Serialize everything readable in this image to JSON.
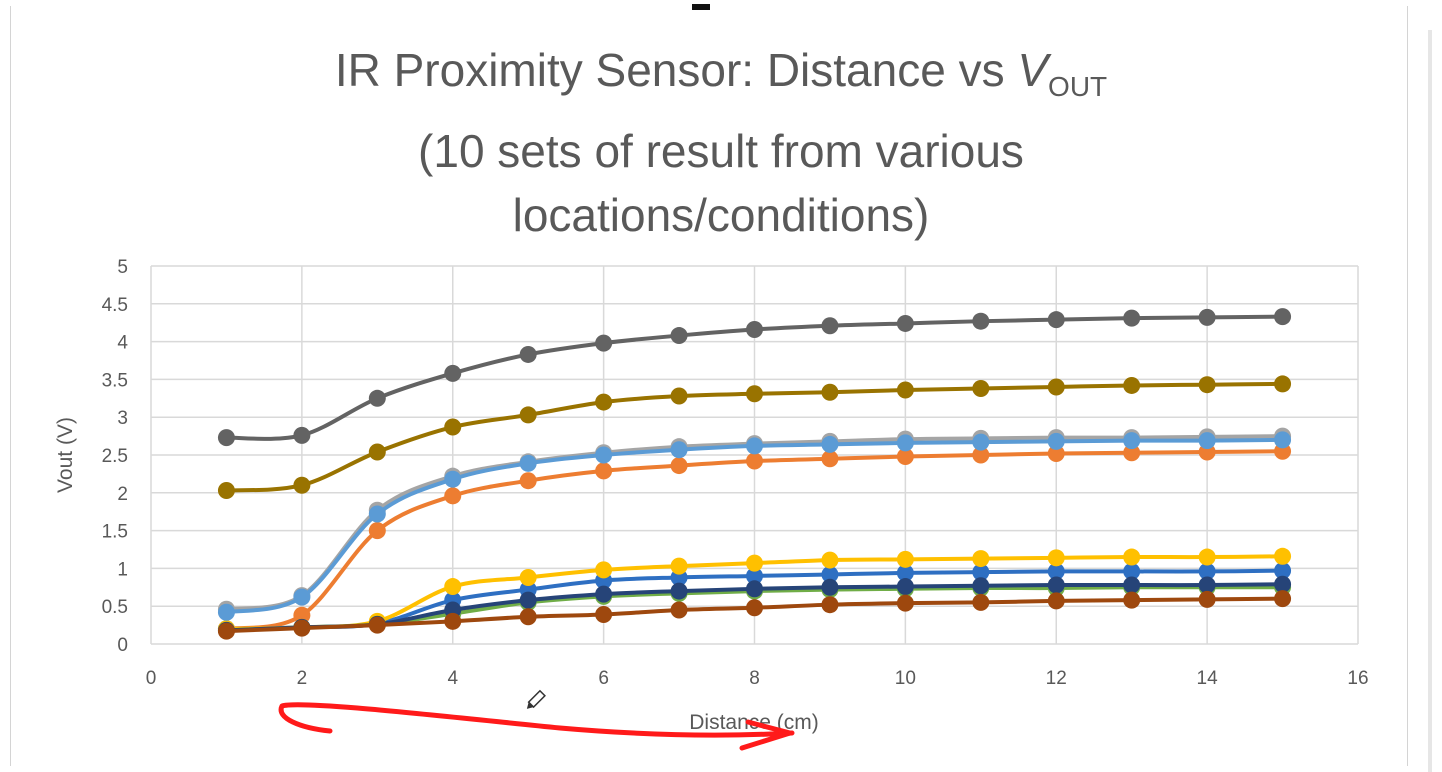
{
  "chart_data": {
    "type": "line",
    "title": {
      "line1_prefix": "IR Proximity Sensor: Distance vs ",
      "line1_var": "V",
      "line1_sub": "OUT",
      "line2": "(10 sets of result from various",
      "line3": "locations/conditions)"
    },
    "xlabel": "Distance (cm)",
    "ylabel": "Vout (V)",
    "xlim": [
      0,
      16
    ],
    "ylim": [
      0,
      5
    ],
    "xticks": [
      "0",
      "2",
      "4",
      "6",
      "8",
      "10",
      "12",
      "14",
      "16"
    ],
    "yticks": [
      "0",
      "0.5",
      "1",
      "1.5",
      "2",
      "2.5",
      "3",
      "3.5",
      "4",
      "4.5",
      "5"
    ],
    "grid": true,
    "legend": "none",
    "smooth": true,
    "markers": true,
    "x": [
      1,
      2,
      3,
      4,
      5,
      6,
      7,
      8,
      9,
      10,
      11,
      12,
      13,
      14,
      15
    ],
    "series": [
      {
        "color": "#2e6fc2",
        "values": [
          0.2,
          0.22,
          0.27,
          0.58,
          0.72,
          0.84,
          0.88,
          0.9,
          0.92,
          0.94,
          0.95,
          0.96,
          0.96,
          0.96,
          0.97
        ]
      },
      {
        "color": "#ed7d31",
        "values": [
          0.2,
          0.38,
          1.5,
          1.96,
          2.16,
          2.29,
          2.36,
          2.42,
          2.45,
          2.48,
          2.5,
          2.52,
          2.53,
          2.54,
          2.55
        ]
      },
      {
        "color": "#a5a5a5",
        "values": [
          0.46,
          0.64,
          1.77,
          2.22,
          2.41,
          2.53,
          2.61,
          2.65,
          2.68,
          2.71,
          2.72,
          2.73,
          2.73,
          2.74,
          2.75
        ]
      },
      {
        "color": "#ffc000",
        "values": [
          0.2,
          0.22,
          0.3,
          0.76,
          0.88,
          0.98,
          1.03,
          1.07,
          1.11,
          1.12,
          1.13,
          1.14,
          1.15,
          1.15,
          1.16
        ]
      },
      {
        "color": "#5b9bd5",
        "values": [
          0.42,
          0.62,
          1.72,
          2.18,
          2.39,
          2.5,
          2.57,
          2.62,
          2.64,
          2.66,
          2.67,
          2.68,
          2.69,
          2.69,
          2.7
        ]
      },
      {
        "color": "#70ad47",
        "values": [
          0.18,
          0.22,
          0.26,
          0.4,
          0.55,
          0.63,
          0.67,
          0.7,
          0.72,
          0.73,
          0.74,
          0.74,
          0.75,
          0.75,
          0.75
        ]
      },
      {
        "color": "#264478",
        "values": [
          0.18,
          0.22,
          0.26,
          0.45,
          0.58,
          0.66,
          0.7,
          0.73,
          0.75,
          0.76,
          0.77,
          0.78,
          0.78,
          0.78,
          0.79
        ]
      },
      {
        "color": "#9e480e",
        "values": [
          0.17,
          0.21,
          0.25,
          0.3,
          0.36,
          0.39,
          0.45,
          0.48,
          0.52,
          0.54,
          0.55,
          0.57,
          0.58,
          0.59,
          0.6
        ]
      },
      {
        "color": "#636363",
        "values": [
          2.73,
          2.76,
          3.25,
          3.58,
          3.83,
          3.98,
          4.08,
          4.16,
          4.21,
          4.24,
          4.27,
          4.29,
          4.31,
          4.32,
          4.33
        ]
      },
      {
        "color": "#997300",
        "values": [
          2.03,
          2.1,
          2.54,
          2.87,
          3.03,
          3.2,
          3.28,
          3.31,
          3.33,
          3.36,
          3.38,
          3.4,
          3.42,
          3.43,
          3.44
        ]
      }
    ]
  },
  "colors": {
    "axis_text": "#595959",
    "gridline": "#d9d9d9",
    "annotation": "#ff1a1a"
  },
  "icons": {
    "cursor": "pencil-cursor-icon"
  }
}
